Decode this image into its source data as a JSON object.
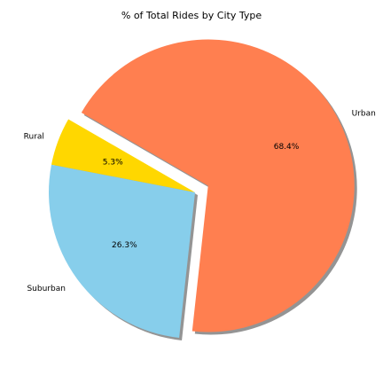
{
  "chart_data": {
    "type": "pie",
    "title": "% of Total Rides by City Type",
    "startangle": 150,
    "shadow": true,
    "slices": [
      {
        "label": "Rural",
        "value": 5.3,
        "pct_label": "5.3%",
        "color": "#FFD700",
        "explode": 0
      },
      {
        "label": "Suburban",
        "value": 26.3,
        "pct_label": "26.3%",
        "color": "#87CEEB",
        "explode": 0
      },
      {
        "label": "Urban",
        "value": 68.4,
        "pct_label": "68.4%",
        "color": "#FF7F50",
        "explode": 0.1
      }
    ]
  }
}
